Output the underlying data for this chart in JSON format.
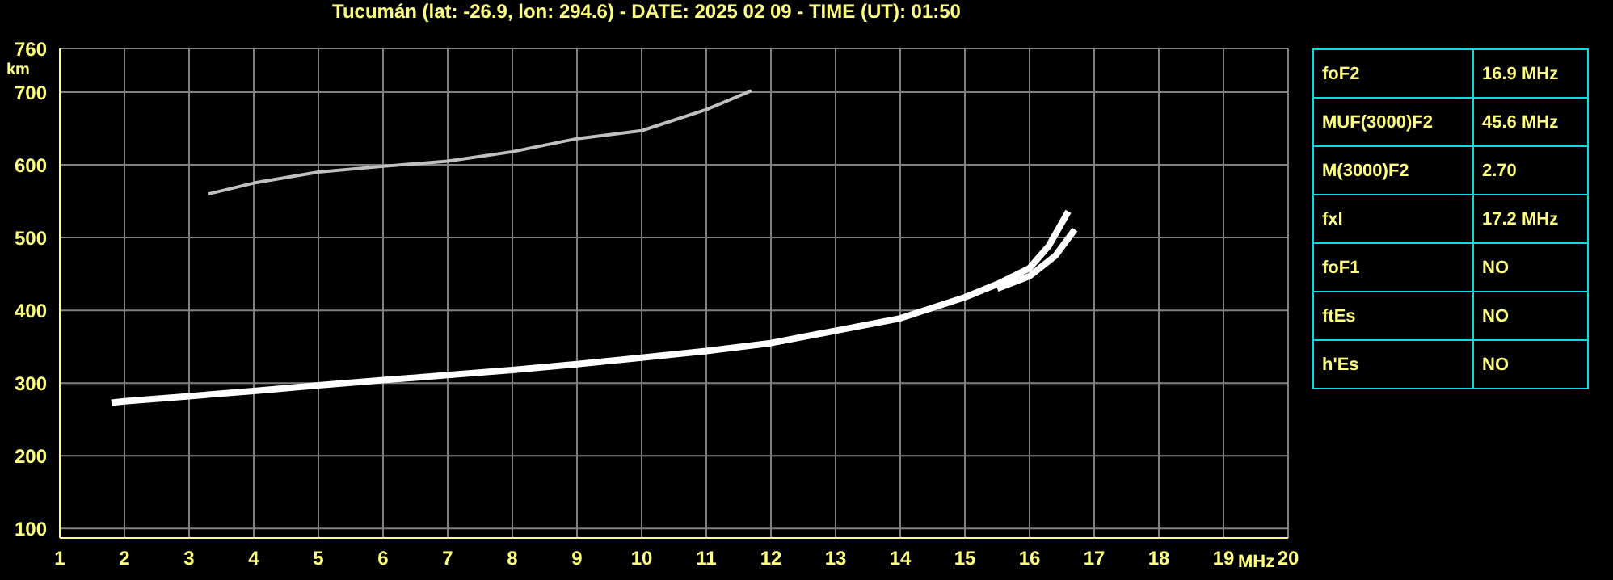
{
  "chart_data": {
    "type": "line",
    "title": "Tucumán (lat: -26.9, lon: 294.6) - DATE: 2025 02 09 - TIME (UT): 01:50",
    "xlabel": "MHz",
    "ylabel": "km",
    "xlim": [
      1,
      20
    ],
    "xticks": [
      1,
      2,
      3,
      4,
      5,
      6,
      7,
      8,
      9,
      10,
      11,
      12,
      13,
      14,
      15,
      16,
      17,
      18,
      19,
      20
    ],
    "ylim": [
      87,
      760
    ],
    "yticks": [
      100,
      200,
      300,
      400,
      500,
      600,
      700,
      760
    ],
    "grid": true,
    "marker": "none",
    "line_style": "solid",
    "series": [
      {
        "color": "#ffffff",
        "x": [
          1.8,
          2,
          3,
          4,
          5,
          6,
          7,
          8,
          9,
          10,
          11,
          12,
          13,
          14,
          15,
          15.5,
          16,
          16.3,
          16.6
        ],
        "values": [
          273,
          275,
          282,
          289,
          297,
          304,
          311,
          318,
          326,
          335,
          344,
          355,
          372,
          389,
          418,
          436,
          458,
          489,
          536
        ]
      },
      {
        "color": "#ffffff",
        "x": [
          15.5,
          16,
          16.4,
          16.7
        ],
        "values": [
          430,
          447,
          475,
          511
        ]
      },
      {
        "color": "#c0c0c0",
        "x": [
          3.3,
          4,
          5,
          6,
          7,
          8,
          9,
          10,
          11,
          11.7
        ],
        "values": [
          560,
          575,
          590,
          598,
          605,
          618,
          636,
          647,
          676,
          702
        ]
      }
    ],
    "annotations": [
      "foF2",
      "16.9 MHz",
      "MUF(3000)F2",
      "45.6 MHz",
      "M(3000)F2",
      "2.70",
      "fxI",
      "17.2 MHz",
      "foF1",
      "NO",
      "ftEs",
      "NO",
      "h'Es",
      "NO"
    ]
  }
}
